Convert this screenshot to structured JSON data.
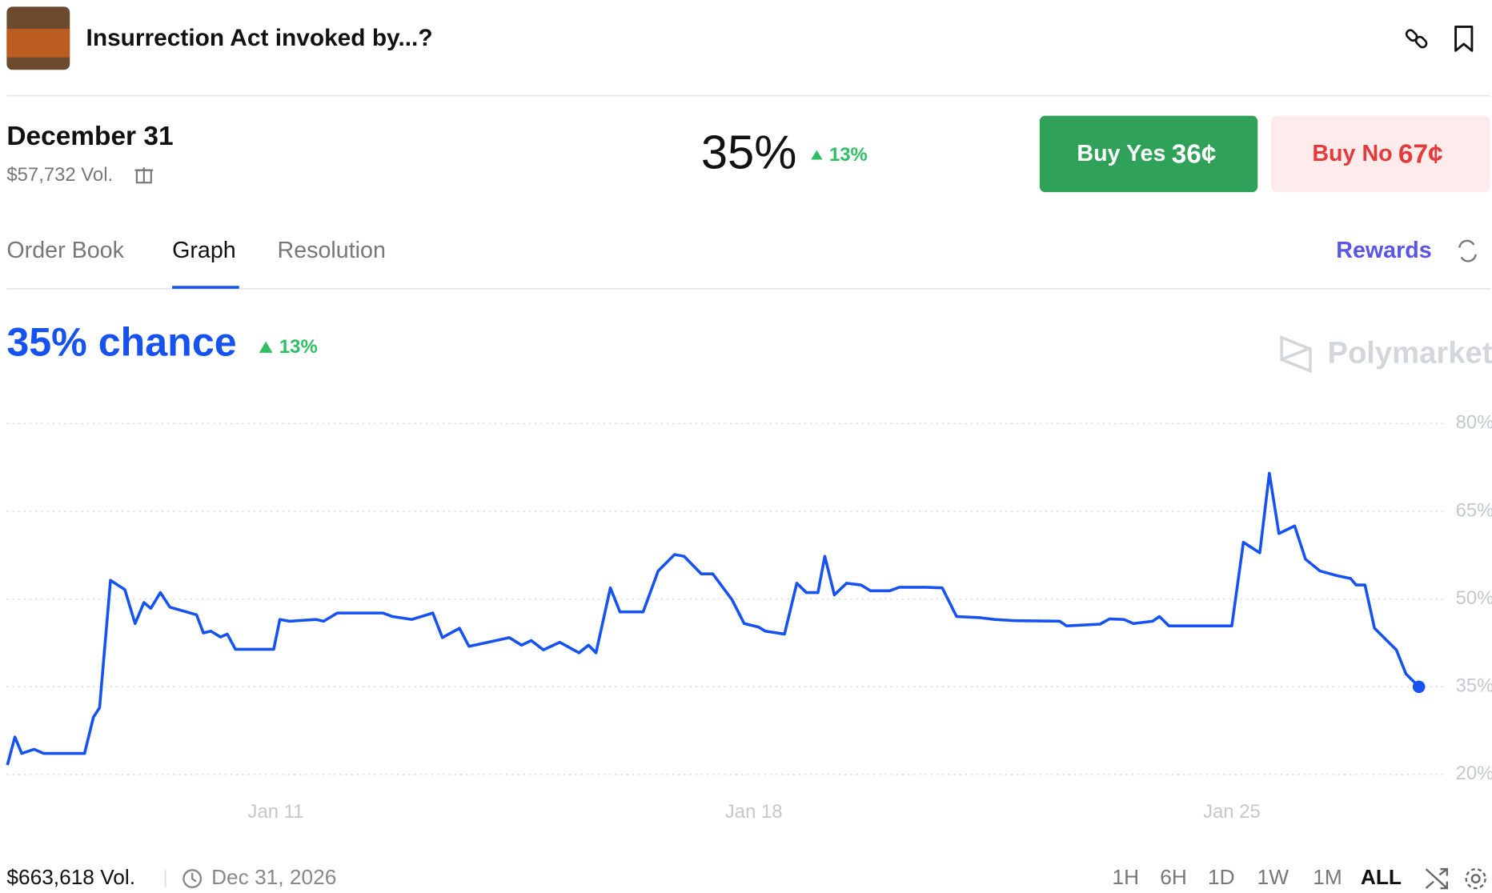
{
  "header": {
    "title": "Insurrection Act invoked by...?"
  },
  "market": {
    "outcome": "December 31",
    "volume": "$57,732 Vol.",
    "price": "35%",
    "change": "13%",
    "buy_yes": {
      "label": "Buy Yes",
      "price": "36¢"
    },
    "buy_no": {
      "label": "Buy No",
      "price": "67¢"
    }
  },
  "tabs": [
    "Order Book",
    "Graph",
    "Resolution"
  ],
  "rewards": "Rewards",
  "watermark": "Polymarket",
  "footer": {
    "volume": "$663,618 Vol.",
    "end_date": "Dec 31, 2026",
    "ranges": [
      "1H",
      "6H",
      "1D",
      "1W",
      "1M",
      "ALL"
    ]
  },
  "chart_data": {
    "type": "line",
    "title": "35% chance",
    "annotation": "13%",
    "series": [
      {
        "name": "December 31",
        "color": "#1652f0",
        "x": [
          7.07,
          7.18,
          7.28,
          7.46,
          7.6,
          8.2,
          8.33,
          8.42,
          8.58,
          8.79,
          8.94,
          9.07,
          9.17,
          9.31,
          9.45,
          9.84,
          9.94,
          10.05,
          10.19,
          10.29,
          10.41,
          10.97,
          11.06,
          11.2,
          11.59,
          11.7,
          11.9,
          12.57,
          12.71,
          12.99,
          13.3,
          13.44,
          13.69,
          13.83,
          14.11,
          14.42,
          14.6,
          14.74,
          14.92,
          15.16,
          15.44,
          15.58,
          15.69,
          15.9,
          16.04,
          16.38,
          16.6,
          16.84,
          16.98,
          17.23,
          17.4,
          17.68,
          17.86,
          18.07,
          18.17,
          18.45,
          18.63,
          18.77,
          18.94,
          19.04,
          19.18,
          19.36,
          19.57,
          19.71,
          19.99,
          20.13,
          20.52,
          20.76,
          20.97,
          21.32,
          21.53,
          21.81,
          22.48,
          22.58,
          23.07,
          23.21,
          23.42,
          23.56,
          23.84,
          23.94,
          24.08,
          25.0,
          25.17,
          25.41,
          25.55,
          25.69,
          25.92,
          26.08,
          26.29,
          26.54,
          26.74,
          26.82,
          26.95,
          27.09,
          27.41,
          27.55,
          27.74
        ],
        "values": [
          21.6,
          26.4,
          23.6,
          24.3,
          23.6,
          23.6,
          29.8,
          31.4,
          53.2,
          51.6,
          45.8,
          49.4,
          48.4,
          51.1,
          48.6,
          47.3,
          44.2,
          44.5,
          43.5,
          44.0,
          41.4,
          41.4,
          46.5,
          46.2,
          46.5,
          46.2,
          47.6,
          47.6,
          47.0,
          46.5,
          47.6,
          43.4,
          45.0,
          41.9,
          42.6,
          43.4,
          42.1,
          42.9,
          41.3,
          42.6,
          40.8,
          42.1,
          40.8,
          51.9,
          47.8,
          47.8,
          54.8,
          57.6,
          57.3,
          54.3,
          54.3,
          49.9,
          45.8,
          45.2,
          44.5,
          44.0,
          52.7,
          51.1,
          51.1,
          57.3,
          50.7,
          52.7,
          52.4,
          51.4,
          51.4,
          52.0,
          52.0,
          51.9,
          47.0,
          46.8,
          46.5,
          46.3,
          46.2,
          45.4,
          45.7,
          46.6,
          46.5,
          45.8,
          46.2,
          47.0,
          45.4,
          45.4,
          59.7,
          57.9,
          71.5,
          61.2,
          62.5,
          56.8,
          54.8,
          54.0,
          53.5,
          52.4,
          52.4,
          45.0,
          41.3,
          37.2,
          35
        ]
      }
    ],
    "xlim": [
      7.06,
      28.11
    ],
    "xticks": [
      {
        "value": 11,
        "label": "Jan 11"
      },
      {
        "value": 18,
        "label": "Jan 18"
      },
      {
        "value": 25,
        "label": "Jan 25"
      }
    ],
    "ylim": [
      20,
      80
    ],
    "yticks": [
      {
        "value": 20,
        "label": "20%"
      },
      {
        "value": 35,
        "label": "35%"
      },
      {
        "value": 50,
        "label": "50%"
      },
      {
        "value": 65,
        "label": "65%"
      },
      {
        "value": 80,
        "label": "80%"
      }
    ],
    "grid": true
  }
}
